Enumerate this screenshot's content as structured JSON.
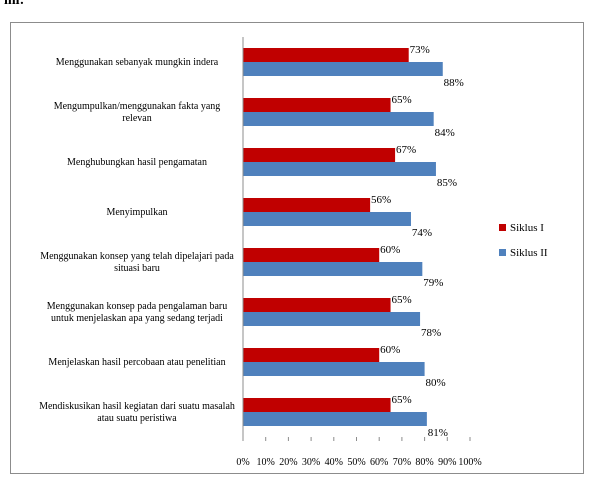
{
  "caption": "ini:",
  "chart_data": {
    "type": "bar",
    "orientation": "horizontal",
    "categories": [
      "Menggunakan sebanyak mungkin indera",
      "Mengumpulkan/menggunakan fakta yang relevan",
      "Menghubungkan hasil pengamatan",
      "Menyimpulkan",
      "Menggunakan konsep yang telah dipelajari pada situasi baru",
      "Menggunakan konsep pada pengalaman baru untuk menjelaskan apa yang sedang terjadi",
      "Menjelaskan hasil percobaan atau penelitian",
      "Mendiskusikan hasil kegiatan dari suatu masalah atau suatu peristiwa"
    ],
    "category_lines": [
      [
        "Menggunakan sebanyak mungkin indera"
      ],
      [
        "Mengumpulkan/menggunakan fakta yang",
        "relevan"
      ],
      [
        "Menghubungkan hasil pengamatan"
      ],
      [
        "Menyimpulkan"
      ],
      [
        "Menggunakan konsep yang telah dipelajari pada",
        "situasi baru"
      ],
      [
        "Menggunakan konsep pada pengalaman baru",
        "untuk menjelaskan apa yang sedang terjadi"
      ],
      [
        "Menjelaskan hasil percobaan atau penelitian"
      ],
      [
        "Mendiskusikan hasil kegiatan dari suatu masalah",
        "atau suatu peristiwa"
      ]
    ],
    "series": [
      {
        "name": "Siklus I",
        "color": "#c00000",
        "values": [
          73,
          65,
          67,
          56,
          60,
          65,
          60,
          65
        ]
      },
      {
        "name": "Siklus II",
        "color": "#4f81bd",
        "values": [
          88,
          84,
          85,
          74,
          79,
          78,
          80,
          81
        ]
      }
    ],
    "xlim": [
      0,
      100
    ],
    "xticks": [
      "0%",
      "10%",
      "20%",
      "30%",
      "40%",
      "50%",
      "60%",
      "70%",
      "80%",
      "90%",
      "100%"
    ],
    "value_suffix": "%",
    "grid": false,
    "legend_position": "right"
  }
}
